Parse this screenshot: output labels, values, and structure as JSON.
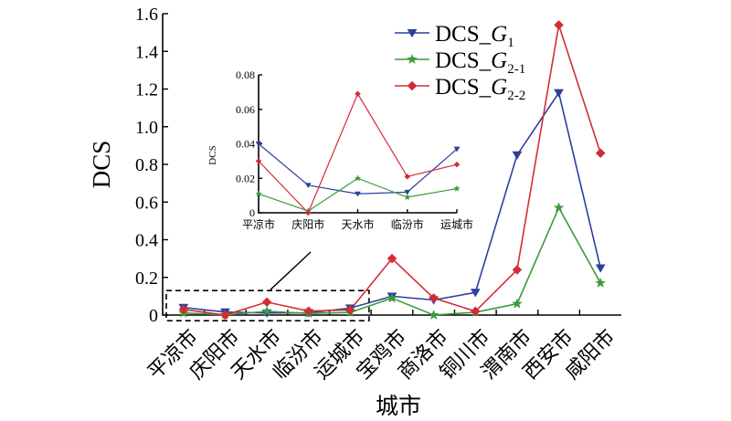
{
  "chart_data": {
    "type": "line",
    "xlabel": "城市",
    "ylabel": "DCS",
    "ylim": [
      0,
      1.6
    ],
    "yticks": [
      0,
      0.2,
      0.4,
      0.6,
      0.8,
      1.0,
      1.2,
      1.4,
      1.6
    ],
    "ytick_labels": [
      "0",
      "0.2",
      "0.4",
      "0.6",
      "0.8",
      "1.0",
      "1.2",
      "1.4",
      "1.6"
    ],
    "categories": [
      "平凉市",
      "庆阳市",
      "天水市",
      "临汾市",
      "运城市",
      "宝鸡市",
      "商洛市",
      "铜川市",
      "渭南市",
      "西安市",
      "咸阳市"
    ],
    "grid": false,
    "legend_position": "top-right",
    "series": [
      {
        "name": "DCS_G1",
        "legend_main": "DCS_",
        "legend_var": "G",
        "legend_sub": "1",
        "color": "#2e3f9c",
        "marker": "triangle-down",
        "values": [
          0.04,
          0.016,
          0.011,
          0.012,
          0.037,
          0.1,
          0.08,
          0.12,
          0.85,
          1.18,
          0.25
        ]
      },
      {
        "name": "DCS_G2-1",
        "legend_main": "DCS_",
        "legend_var": "G",
        "legend_sub": "2-1",
        "color": "#3c9a3c",
        "marker": "star",
        "values": [
          0.011,
          0.001,
          0.02,
          0.009,
          0.014,
          0.09,
          0.0,
          0.015,
          0.06,
          0.57,
          0.17
        ]
      },
      {
        "name": "DCS_G2-2",
        "legend_main": "DCS_",
        "legend_var": "G",
        "legend_sub": "2-2",
        "color": "#d42b35",
        "marker": "diamond",
        "values": [
          0.03,
          0.0,
          0.069,
          0.021,
          0.028,
          0.3,
          0.09,
          0.02,
          0.24,
          1.54,
          0.86
        ]
      }
    ],
    "inset": {
      "ylabel": "DCS",
      "ylim": [
        0,
        0.08
      ],
      "yticks": [
        0,
        0.02,
        0.04,
        0.06,
        0.08
      ],
      "ytick_labels": [
        "0",
        "0.02",
        "0.04",
        "0.06",
        "0.08"
      ],
      "categories": [
        "平凉市",
        "庆阳市",
        "天水市",
        "临汾市",
        "运城市"
      ],
      "category_indices": [
        0,
        1,
        2,
        3,
        4
      ],
      "zoom_ylim": [
        -0.03,
        0.13
      ]
    }
  }
}
